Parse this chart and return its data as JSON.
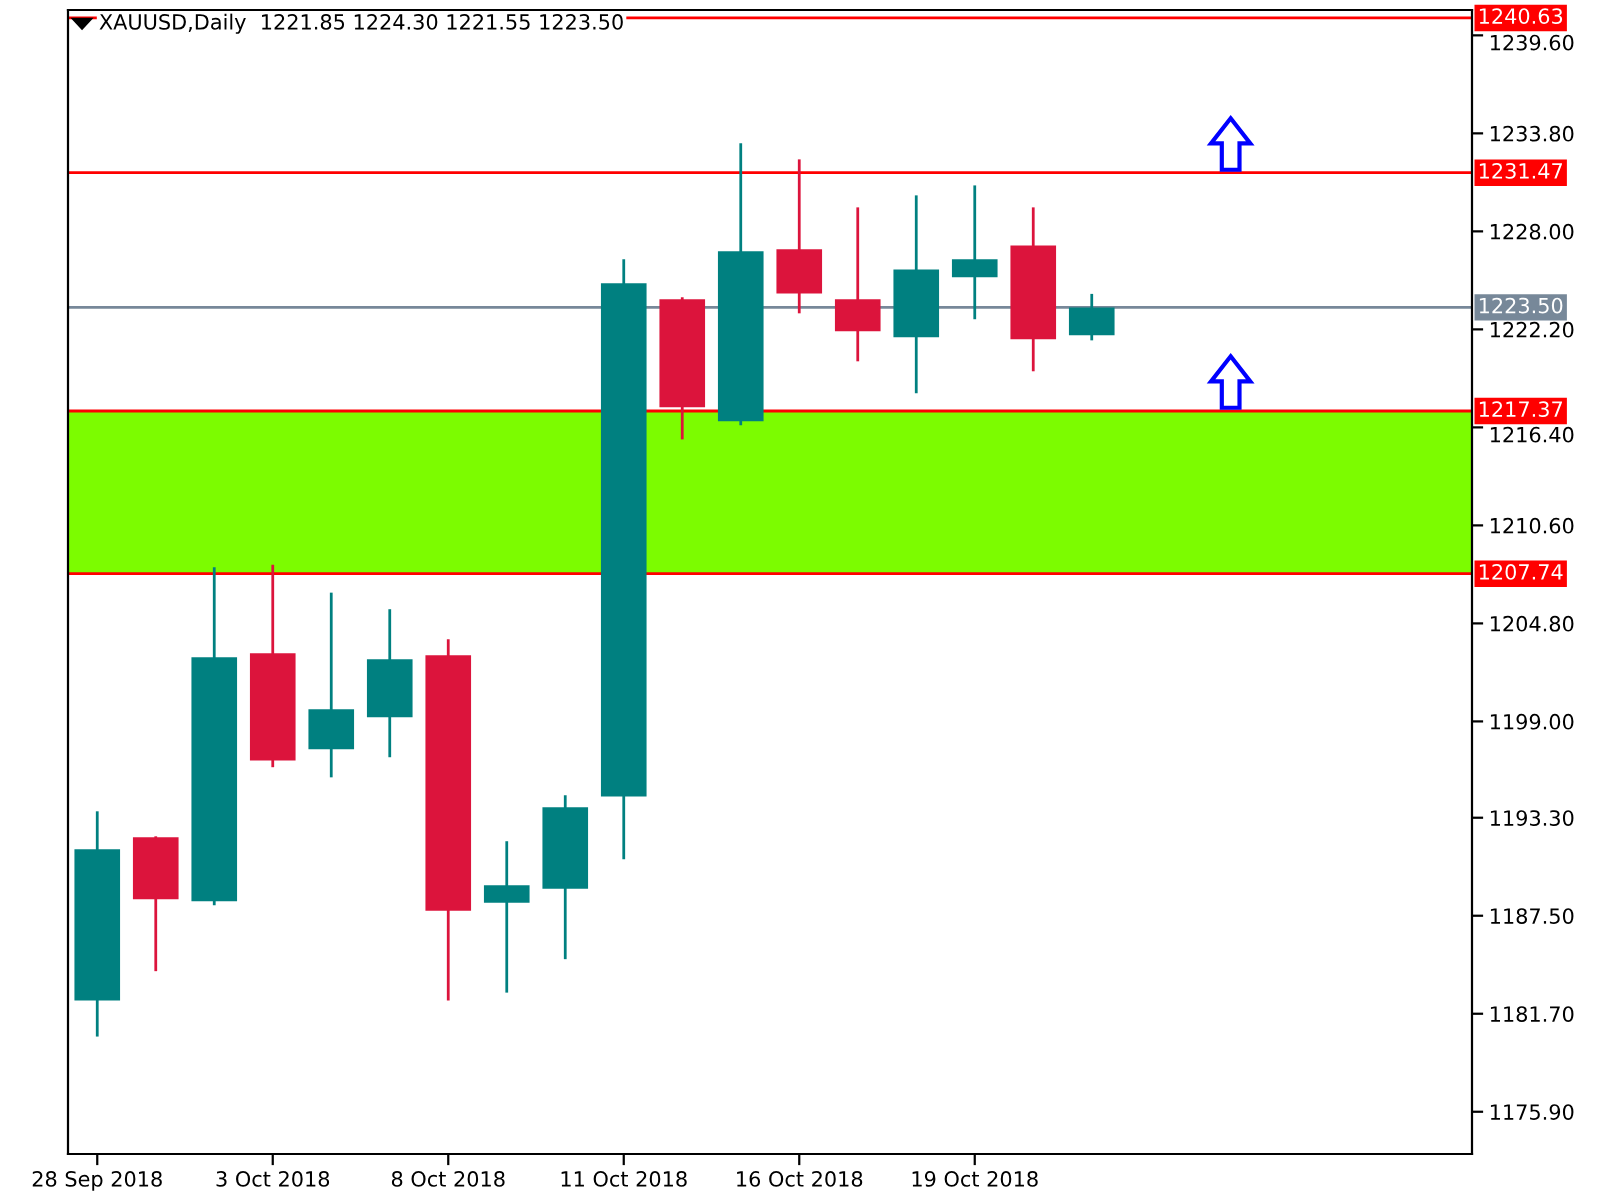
{
  "chart_data": {
    "type": "candlestick",
    "title": "XAUUSD,Daily  1221.85 1224.30 1221.55 1223.50",
    "categories": [
      "28 Sep 2018",
      null,
      null,
      "3 Oct 2018",
      null,
      null,
      "8 Oct 2018",
      null,
      null,
      "11 Oct 2018",
      null,
      null,
      "16 Oct 2018",
      null,
      null,
      "19 Oct 2018",
      null,
      null,
      null,
      null,
      null,
      null,
      null,
      null
    ],
    "ohlc": [
      [
        1182.48,
        1193.68,
        1180.35,
        1191.43
      ],
      [
        1192.14,
        1192.2,
        1184.22,
        1188.48
      ],
      [
        1188.36,
        1208.12,
        1188.12,
        1202.8
      ],
      [
        1203.03,
        1208.27,
        1196.29,
        1196.68
      ],
      [
        1197.35,
        1206.62,
        1195.69,
        1199.72
      ],
      [
        1199.24,
        1205.64,
        1196.88,
        1202.68
      ],
      [
        1202.91,
        1203.86,
        1182.48,
        1187.8
      ],
      [
        1188.27,
        1191.91,
        1182.95,
        1189.3
      ],
      [
        1189.1,
        1194.63,
        1184.93,
        1193.92
      ],
      [
        1194.55,
        1226.35,
        1190.84,
        1224.93
      ],
      [
        1223.98,
        1224.1,
        1215.69,
        1217.59
      ],
      [
        1216.76,
        1233.21,
        1216.52,
        1226.82
      ],
      [
        1226.94,
        1232.26,
        1223.15,
        1224.33
      ],
      [
        1223.98,
        1229.42,
        1220.31,
        1222.09
      ],
      [
        1221.73,
        1230.13,
        1218.42,
        1225.75
      ],
      [
        1225.28,
        1230.72,
        1222.8,
        1226.35
      ],
      [
        1227.17,
        1229.42,
        1219.72,
        1221.61
      ],
      [
        1221.85,
        1224.3,
        1221.55,
        1223.5
      ],
      null,
      null,
      null,
      null,
      null,
      null
    ],
    "colors": [
      "#008080",
      "#dc143c",
      "#008080",
      "#dc143c",
      "#008080",
      "#008080",
      "#dc143c",
      "#008080",
      "#008080",
      "#008080",
      "#dc143c",
      "#008080",
      "#dc143c",
      "#dc143c",
      "#008080",
      "#008080",
      "#dc143c",
      "#008080",
      null,
      null,
      null,
      null,
      null,
      null
    ],
    "ylim": [
      1173.4,
      1241.1
    ],
    "yticks": [
      {
        "value": 1175.9,
        "label": "1175.90"
      },
      {
        "value": 1181.7,
        "label": "1181.70"
      },
      {
        "value": 1187.5,
        "label": "1187.50"
      },
      {
        "value": 1193.3,
        "label": "1193.30"
      },
      {
        "value": 1199,
        "label": "1199.00"
      },
      {
        "value": 1204.8,
        "label": "1204.80"
      },
      {
        "value": 1210.6,
        "label": "1210.60"
      },
      {
        "value": 1216.4,
        "label": "1216.40"
      },
      {
        "value": 1222.2,
        "label": "1222.20"
      },
      {
        "value": 1228,
        "label": "1228.00"
      },
      {
        "value": 1233.8,
        "label": "1233.80"
      },
      {
        "value": 1239.6,
        "label": "1239.60"
      }
    ],
    "bands": [
      {
        "axis": "y",
        "from": 1207.74,
        "to": 1217.37,
        "color": "#7cfc00"
      }
    ],
    "ref_lines": [
      {
        "axis": "y",
        "value": 1240.63,
        "label": "1240.63",
        "color": "#ff0000"
      },
      {
        "axis": "y",
        "value": 1231.47,
        "label": "1231.47",
        "color": "#ff0000"
      },
      {
        "axis": "y",
        "value": 1223.5,
        "label": "1223.50",
        "color": "#778899"
      },
      {
        "axis": "y",
        "value": 1217.37,
        "label": "1217.37",
        "color": "#ff0000"
      },
      {
        "axis": "y",
        "value": 1207.74,
        "label": "1207.74",
        "color": "#ff0000"
      }
    ],
    "grid": false
  }
}
